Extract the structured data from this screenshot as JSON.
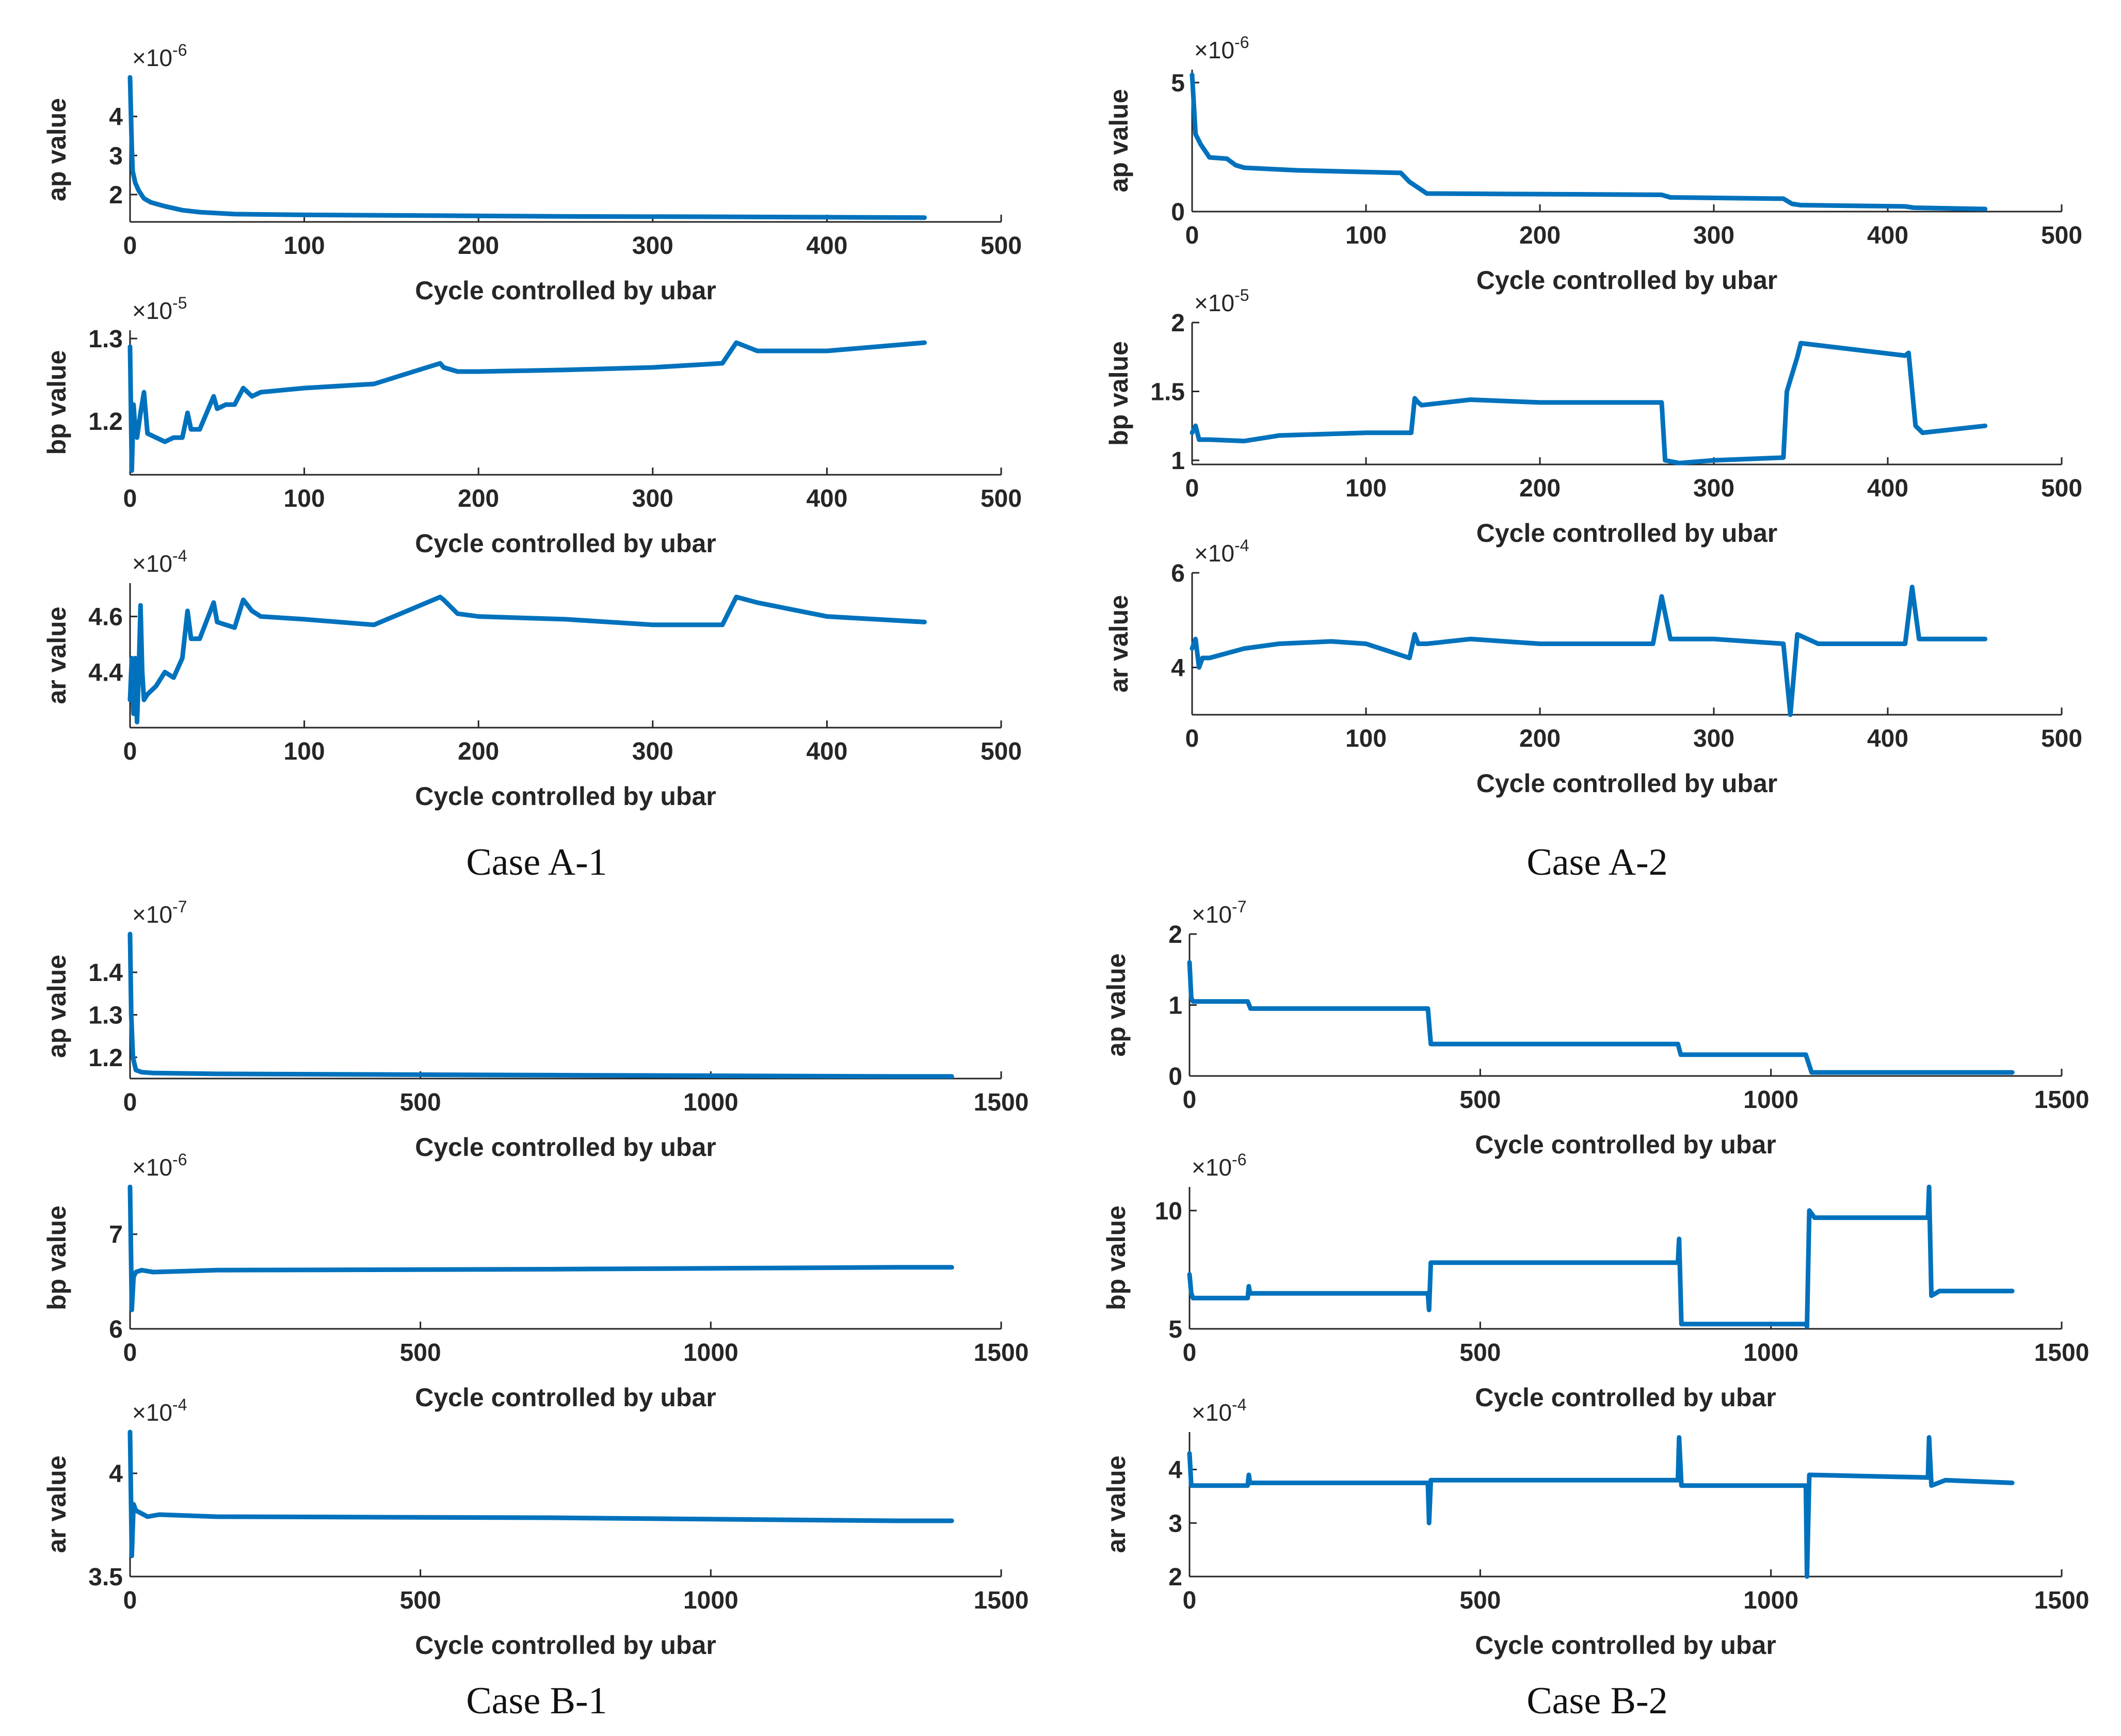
{
  "colors": {
    "series": "#0072bd",
    "axis": "#262626",
    "background": "#ffffff"
  },
  "captions": [
    "Case A-1",
    "Case A-2",
    "Case B-1",
    "Case B-2"
  ],
  "chart_data": [
    {
      "id": "A1-ap",
      "type": "line",
      "xlabel": "Cycle controlled by ubar",
      "ylabel": "ap value",
      "exponent": "-6",
      "xlim": [
        0,
        500
      ],
      "ylim": [
        1.3,
        5.0
      ],
      "xticks": [
        0,
        100,
        200,
        300,
        400,
        500
      ],
      "yticks": [
        2,
        3,
        4
      ],
      "series": [
        {
          "name": "ap",
          "x": [
            0,
            1,
            1.5,
            3,
            5,
            8,
            12,
            20,
            30,
            40,
            60,
            100,
            180,
            250,
            350,
            400,
            456
          ],
          "y": [
            5.0,
            3.2,
            2.6,
            2.3,
            2.1,
            1.9,
            1.8,
            1.7,
            1.6,
            1.55,
            1.5,
            1.48,
            1.46,
            1.44,
            1.43,
            1.42,
            1.41
          ]
        }
      ]
    },
    {
      "id": "A1-bp",
      "type": "line",
      "xlabel": "Cycle controlled by ubar",
      "ylabel": "bp value",
      "exponent": "-5",
      "xlim": [
        0,
        500
      ],
      "ylim": [
        1.135,
        1.31
      ],
      "xticks": [
        0,
        100,
        200,
        300,
        400,
        500
      ],
      "yticks": [
        1.2,
        1.3
      ],
      "series": [
        {
          "name": "bp",
          "x": [
            0,
            1,
            2,
            3,
            4,
            6,
            8,
            10,
            15,
            20,
            25,
            30,
            33,
            35,
            40,
            48,
            50,
            55,
            60,
            65,
            70,
            75,
            100,
            140,
            178,
            180,
            188,
            200,
            250,
            300,
            340,
            348,
            360,
            400,
            456
          ],
          "y": [
            1.29,
            1.14,
            1.22,
            1.19,
            1.18,
            1.21,
            1.235,
            1.185,
            1.18,
            1.175,
            1.18,
            1.18,
            1.21,
            1.19,
            1.19,
            1.23,
            1.215,
            1.22,
            1.22,
            1.24,
            1.23,
            1.235,
            1.24,
            1.245,
            1.27,
            1.265,
            1.26,
            1.26,
            1.262,
            1.265,
            1.27,
            1.295,
            1.285,
            1.285,
            1.295
          ]
        }
      ]
    },
    {
      "id": "A1-ar",
      "type": "line",
      "xlabel": "Cycle controlled by ubar",
      "ylabel": "ar value",
      "exponent": "-4",
      "xlim": [
        0,
        500
      ],
      "ylim": [
        4.2,
        4.72
      ],
      "xticks": [
        0,
        100,
        200,
        300,
        400,
        500
      ],
      "yticks": [
        4.4,
        4.6
      ],
      "series": [
        {
          "name": "ar",
          "x": [
            0,
            1,
            2,
            3,
            4,
            5,
            6,
            7,
            8,
            10,
            15,
            20,
            25,
            30,
            33,
            35,
            40,
            48,
            50,
            55,
            60,
            65,
            70,
            75,
            100,
            140,
            178,
            180,
            188,
            200,
            250,
            300,
            340,
            348,
            360,
            400,
            456
          ],
          "y": [
            4.3,
            4.45,
            4.25,
            4.45,
            4.22,
            4.4,
            4.64,
            4.4,
            4.3,
            4.32,
            4.35,
            4.4,
            4.38,
            4.45,
            4.62,
            4.52,
            4.52,
            4.65,
            4.58,
            4.57,
            4.56,
            4.66,
            4.62,
            4.6,
            4.59,
            4.57,
            4.67,
            4.66,
            4.61,
            4.6,
            4.59,
            4.57,
            4.57,
            4.67,
            4.65,
            4.6,
            4.58
          ]
        }
      ]
    },
    {
      "id": "A2-ap",
      "type": "line",
      "xlabel": "Cycle controlled by ubar",
      "ylabel": "ap value",
      "exponent": "-6",
      "xlim": [
        0,
        500
      ],
      "ylim": [
        0,
        5.5
      ],
      "xticks": [
        0,
        100,
        200,
        300,
        400,
        500
      ],
      "yticks": [
        0,
        5
      ],
      "series": [
        {
          "name": "ap",
          "x": [
            0,
            2,
            5,
            10,
            20,
            25,
            30,
            60,
            120,
            125,
            135,
            270,
            275,
            340,
            345,
            350,
            410,
            415,
            456
          ],
          "y": [
            5.3,
            3.0,
            2.6,
            2.1,
            2.05,
            1.8,
            1.7,
            1.6,
            1.5,
            1.15,
            0.7,
            0.65,
            0.55,
            0.5,
            0.3,
            0.25,
            0.2,
            0.15,
            0.1
          ]
        }
      ]
    },
    {
      "id": "A2-bp",
      "type": "line",
      "xlabel": "Cycle controlled by ubar",
      "ylabel": "bp value",
      "exponent": "-5",
      "xlim": [
        0,
        500
      ],
      "ylim": [
        0.97,
        2.0
      ],
      "xticks": [
        0,
        100,
        200,
        300,
        400,
        500
      ],
      "yticks": [
        1,
        1.5,
        2
      ],
      "series": [
        {
          "name": "bp",
          "x": [
            0,
            2,
            4,
            10,
            30,
            50,
            100,
            126,
            128,
            130,
            132,
            160,
            200,
            270,
            272,
            280,
            300,
            340,
            342,
            348,
            350,
            410,
            412,
            416,
            420,
            456
          ],
          "y": [
            1.2,
            1.25,
            1.15,
            1.15,
            1.14,
            1.18,
            1.2,
            1.2,
            1.45,
            1.42,
            1.4,
            1.44,
            1.42,
            1.42,
            1.0,
            0.98,
            1.0,
            1.02,
            1.5,
            1.75,
            1.85,
            1.76,
            1.78,
            1.25,
            1.2,
            1.25
          ]
        }
      ]
    },
    {
      "id": "A2-ar",
      "type": "line",
      "xlabel": "Cycle controlled by ubar",
      "ylabel": "ar value",
      "exponent": "-4",
      "xlim": [
        0,
        500
      ],
      "ylim": [
        3.0,
        6.0
      ],
      "xticks": [
        0,
        100,
        200,
        300,
        400,
        500
      ],
      "yticks": [
        4,
        6
      ],
      "series": [
        {
          "name": "ar",
          "x": [
            0,
            2,
            4,
            6,
            10,
            30,
            50,
            80,
            100,
            125,
            128,
            130,
            135,
            160,
            200,
            265,
            270,
            275,
            300,
            340,
            344,
            348,
            360,
            410,
            414,
            418,
            456
          ],
          "y": [
            4.4,
            4.6,
            4.0,
            4.2,
            4.2,
            4.4,
            4.5,
            4.55,
            4.5,
            4.2,
            4.7,
            4.5,
            4.5,
            4.6,
            4.5,
            4.5,
            5.5,
            4.6,
            4.6,
            4.5,
            3.0,
            4.7,
            4.5,
            4.5,
            5.7,
            4.6,
            4.6
          ]
        }
      ]
    },
    {
      "id": "B1-ap",
      "type": "line",
      "xlabel": "Cycle controlled by ubar",
      "ylabel": "ap value",
      "exponent": "-7",
      "xlim": [
        0,
        1500
      ],
      "ylim": [
        1.15,
        1.49
      ],
      "xticks": [
        0,
        500,
        1000,
        1500
      ],
      "yticks": [
        1.2,
        1.3,
        1.4
      ],
      "series": [
        {
          "name": "ap",
          "x": [
            0,
            2,
            5,
            10,
            20,
            40,
            150,
            720,
            1320,
            1415
          ],
          "y": [
            1.49,
            1.3,
            1.2,
            1.17,
            1.165,
            1.163,
            1.161,
            1.158,
            1.155,
            1.155
          ]
        }
      ]
    },
    {
      "id": "B1-bp",
      "type": "line",
      "xlabel": "Cycle controlled by ubar",
      "ylabel": "bp value",
      "exponent": "-6",
      "xlim": [
        0,
        1500
      ],
      "ylim": [
        6.0,
        7.5
      ],
      "xticks": [
        0,
        500,
        1000,
        1500
      ],
      "yticks": [
        6,
        7
      ],
      "series": [
        {
          "name": "bp",
          "x": [
            0,
            3,
            6,
            10,
            20,
            40,
            150,
            720,
            1320,
            1415
          ],
          "y": [
            7.5,
            6.2,
            6.55,
            6.6,
            6.62,
            6.6,
            6.62,
            6.63,
            6.65,
            6.65
          ]
        }
      ]
    },
    {
      "id": "B1-ar",
      "type": "line",
      "xlabel": "Cycle controlled by ubar",
      "ylabel": "ar value",
      "exponent": "-4",
      "xlim": [
        0,
        1500
      ],
      "ylim": [
        3.5,
        4.2
      ],
      "xticks": [
        0,
        500,
        1000,
        1500
      ],
      "yticks": [
        3.5,
        4
      ],
      "series": [
        {
          "name": "ar",
          "x": [
            0,
            3,
            6,
            10,
            30,
            50,
            150,
            720,
            1320,
            1415
          ],
          "y": [
            4.2,
            3.6,
            3.85,
            3.82,
            3.79,
            3.8,
            3.79,
            3.785,
            3.77,
            3.77
          ]
        }
      ]
    },
    {
      "id": "B2-ap",
      "type": "line",
      "xlabel": "Cycle controlled by ubar",
      "ylabel": "ap value",
      "exponent": "-7",
      "xlim": [
        0,
        1500
      ],
      "ylim": [
        0,
        2.0
      ],
      "xticks": [
        0,
        500,
        1000,
        1500
      ],
      "yticks": [
        0,
        1,
        2
      ],
      "series": [
        {
          "name": "ap",
          "x": [
            0,
            3,
            6,
            100,
            105,
            410,
            415,
            840,
            845,
            1060,
            1070,
            1415
          ],
          "y": [
            1.6,
            1.1,
            1.05,
            1.05,
            0.95,
            0.95,
            0.45,
            0.45,
            0.3,
            0.3,
            0.05,
            0.05
          ]
        }
      ]
    },
    {
      "id": "B2-bp",
      "type": "line",
      "xlabel": "Cycle controlled by ubar",
      "ylabel": "bp value",
      "exponent": "-6",
      "xlim": [
        0,
        1500
      ],
      "ylim": [
        5.0,
        11.0
      ],
      "xticks": [
        0,
        500,
        1000,
        1500
      ],
      "yticks": [
        5,
        10
      ],
      "series": [
        {
          "name": "bp",
          "x": [
            0,
            3,
            6,
            100,
            102,
            104,
            410,
            412,
            415,
            840,
            842,
            846,
            1060,
            1062,
            1066,
            1075,
            1270,
            1272,
            1276,
            1290,
            1415
          ],
          "y": [
            7.3,
            6.5,
            6.3,
            6.3,
            6.8,
            6.5,
            6.5,
            5.8,
            7.8,
            7.8,
            8.8,
            5.2,
            5.2,
            5.1,
            10.0,
            9.7,
            9.7,
            11.0,
            6.4,
            6.6,
            6.6
          ]
        }
      ]
    },
    {
      "id": "B2-ar",
      "type": "line",
      "xlabel": "Cycle controlled by ubar",
      "ylabel": "ar value",
      "exponent": "-4",
      "xlim": [
        0,
        1500
      ],
      "ylim": [
        2.0,
        4.7
      ],
      "xticks": [
        0,
        500,
        1000,
        1500
      ],
      "yticks": [
        2,
        3,
        4
      ],
      "series": [
        {
          "name": "ar",
          "x": [
            0,
            3,
            6,
            100,
            102,
            104,
            410,
            412,
            415,
            840,
            842,
            846,
            1060,
            1062,
            1066,
            1270,
            1272,
            1276,
            1300,
            1415
          ],
          "y": [
            4.3,
            3.7,
            3.7,
            3.7,
            3.9,
            3.75,
            3.75,
            3.0,
            3.8,
            3.8,
            4.6,
            3.7,
            3.7,
            2.0,
            3.9,
            3.85,
            4.6,
            3.7,
            3.8,
            3.75
          ]
        }
      ]
    }
  ]
}
